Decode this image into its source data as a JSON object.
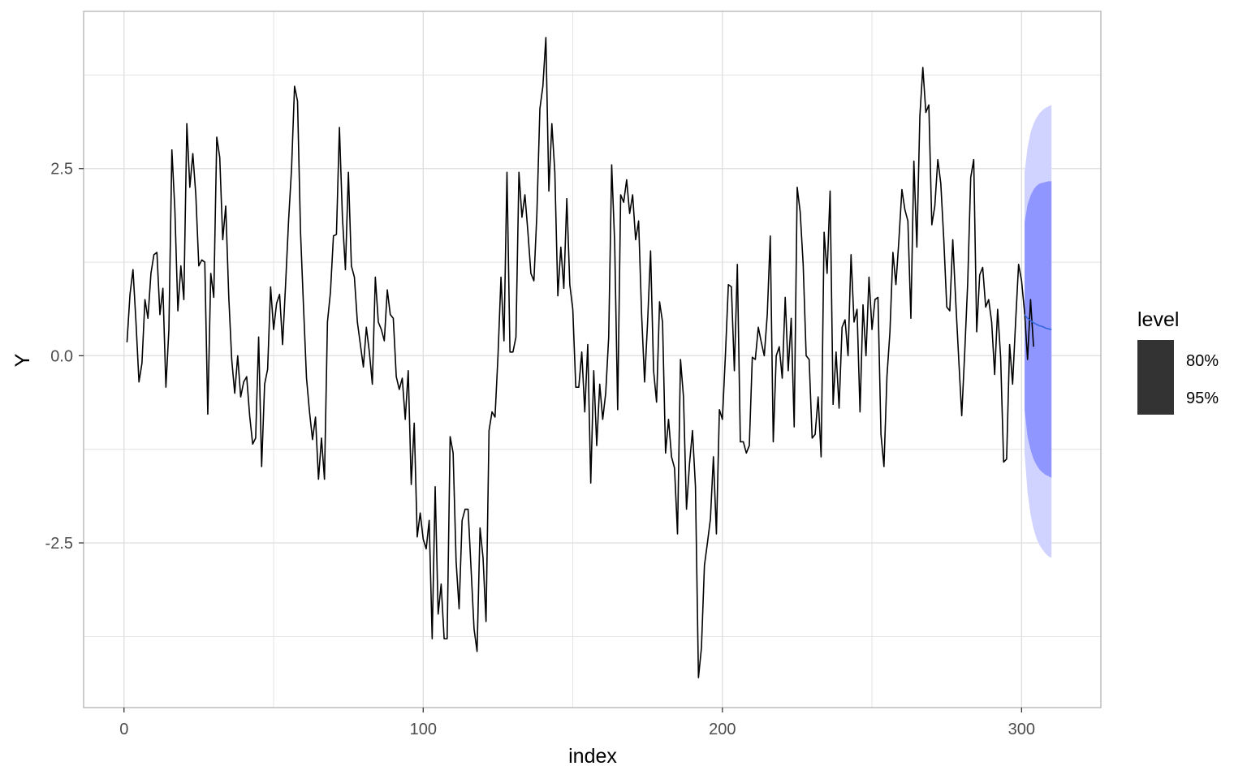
{
  "chart_data": {
    "type": "line",
    "title": "",
    "xlabel": "index",
    "ylabel": "Y",
    "xlim": [
      -13.5,
      326.5
    ],
    "ylim": [
      -4.7,
      4.6
    ],
    "x_ticks": [
      0,
      100,
      200,
      300
    ],
    "x_tick_labels": [
      "0",
      "100",
      "200",
      "300"
    ],
    "y_ticks": [
      -2.5,
      0,
      2.5
    ],
    "y_tick_labels": [
      "-2.5",
      "0.0",
      "2.5"
    ],
    "grid": true,
    "legend": {
      "title": "level",
      "placement": "right",
      "entries": [
        "80%",
        "95%"
      ]
    },
    "colors": {
      "series": "#000000",
      "forecast_mean": "#3366dd",
      "band_80": "#8f96ff",
      "band_95": "#d0d2ff",
      "panel_border": "#b3b3b3",
      "grid": "#dedede",
      "legend_key": "#333333"
    },
    "series": [
      {
        "x_start": 1,
        "x_step": 1,
        "values": [
          0.18,
          0.82,
          1.15,
          0.45,
          -0.35,
          -0.1,
          0.75,
          0.5,
          1.1,
          1.35,
          1.38,
          0.55,
          0.9,
          -0.42,
          0.35,
          2.75,
          1.95,
          0.6,
          1.2,
          0.75,
          3.1,
          2.25,
          2.7,
          2.15,
          1.2,
          1.28,
          1.25,
          -0.78,
          1.1,
          0.78,
          2.92,
          2.65,
          1.55,
          2.0,
          0.8,
          -0.05,
          -0.5,
          0.0,
          -0.55,
          -0.35,
          -0.28,
          -0.8,
          -1.18,
          -1.1,
          0.25,
          -1.48,
          -0.38,
          -0.18,
          0.92,
          0.35,
          0.7,
          0.82,
          0.15,
          0.95,
          1.8,
          2.5,
          3.6,
          3.4,
          1.65,
          0.65,
          -0.3,
          -0.75,
          -1.12,
          -0.82,
          -1.65,
          -1.1,
          -1.65,
          0.45,
          0.85,
          1.6,
          1.62,
          3.05,
          1.85,
          1.15,
          2.45,
          1.2,
          1.05,
          0.45,
          0.15,
          -0.15,
          0.38,
          0.05,
          -0.38,
          1.05,
          0.45,
          0.35,
          0.2,
          0.88,
          0.55,
          0.5,
          -0.28,
          -0.45,
          -0.3,
          -0.85,
          -0.2,
          -1.72,
          -0.9,
          -2.42,
          -2.1,
          -2.45,
          -2.58,
          -2.2,
          -3.78,
          -1.75,
          -3.45,
          -3.05,
          -3.78,
          -3.78,
          -1.08,
          -1.3,
          -2.75,
          -3.38,
          -2.2,
          -2.05,
          -2.05,
          -2.85,
          -3.65,
          -3.95,
          -2.3,
          -2.7,
          -3.55,
          -1.0,
          -0.75,
          -0.82,
          0.0,
          1.05,
          0.2,
          2.45,
          0.05,
          0.05,
          0.25,
          2.45,
          1.85,
          2.15,
          1.65,
          1.1,
          1.0,
          1.9,
          3.3,
          3.6,
          4.25,
          2.2,
          3.1,
          2.45,
          0.8,
          1.45,
          0.9,
          2.1,
          0.95,
          0.62,
          -0.42,
          -0.42,
          0.05,
          -0.75,
          0.15,
          -1.7,
          -0.2,
          -1.2,
          -0.38,
          -0.85,
          -0.5,
          0.25,
          2.55,
          1.5,
          -0.72,
          2.15,
          2.05,
          2.35,
          1.9,
          2.15,
          1.55,
          1.8,
          0.55,
          -0.35,
          0.45,
          1.4,
          -0.2,
          -0.62,
          0.72,
          0.45,
          -1.3,
          -0.85,
          -1.35,
          -1.5,
          -2.38,
          -0.05,
          -0.55,
          -2.05,
          -1.45,
          -1.0,
          -1.75,
          -4.3,
          -3.9,
          -2.8,
          -2.5,
          -2.18,
          -1.35,
          -2.38,
          -0.72,
          -0.85,
          0.0,
          0.95,
          0.92,
          -0.2,
          1.22,
          -1.15,
          -1.15,
          -1.3,
          -1.2,
          -0.02,
          -0.05,
          0.38,
          0.18,
          0.0,
          0.55,
          1.6,
          -1.15,
          0.0,
          0.12,
          -0.3,
          0.78,
          -0.2,
          0.5,
          -0.95,
          2.25,
          1.92,
          1.22,
          0.0,
          -0.05,
          -1.1,
          -1.05,
          -0.55,
          -1.35,
          1.65,
          1.1,
          2.2,
          -0.65,
          0.05,
          -0.7,
          0.38,
          0.48,
          0.0,
          1.35,
          0.45,
          0.62,
          -0.75,
          0.68,
          0.0,
          1.05,
          0.35,
          0.75,
          0.78,
          -1.05,
          -1.48,
          -0.28,
          0.32,
          1.38,
          0.95,
          1.55,
          2.22,
          1.95,
          1.8,
          0.5,
          2.6,
          1.45,
          3.2,
          3.85,
          3.25,
          3.35,
          1.75,
          2.0,
          2.62,
          2.3,
          1.55,
          0.65,
          0.6,
          1.55,
          0.72,
          -0.05,
          -0.8,
          0.05,
          0.98,
          2.38,
          2.62,
          0.32,
          1.08,
          1.18,
          0.65,
          0.75,
          0.45,
          -0.25,
          0.62,
          -0.02,
          -1.42,
          -1.38,
          0.15,
          -0.38,
          0.45,
          1.22,
          1.0,
          0.58,
          -0.05,
          0.75,
          0.12
        ]
      }
    ],
    "forecast": {
      "x": [
        301,
        302,
        303,
        304,
        305,
        306,
        307,
        308,
        309,
        310
      ],
      "mean": [
        0.55,
        0.5,
        0.47,
        0.44,
        0.42,
        0.4,
        0.39,
        0.37,
        0.36,
        0.35
      ],
      "lo80": [
        -0.72,
        -1.08,
        -1.26,
        -1.38,
        -1.46,
        -1.52,
        -1.56,
        -1.59,
        -1.61,
        -1.63
      ],
      "hi80": [
        1.78,
        2.02,
        2.14,
        2.22,
        2.27,
        2.3,
        2.31,
        2.32,
        2.33,
        2.33
      ],
      "lo95": [
        -1.3,
        -1.83,
        -2.12,
        -2.31,
        -2.44,
        -2.53,
        -2.59,
        -2.64,
        -2.68,
        -2.7
      ],
      "hi95": [
        2.45,
        2.78,
        2.98,
        3.1,
        3.18,
        3.24,
        3.28,
        3.31,
        3.33,
        3.35
      ]
    }
  }
}
